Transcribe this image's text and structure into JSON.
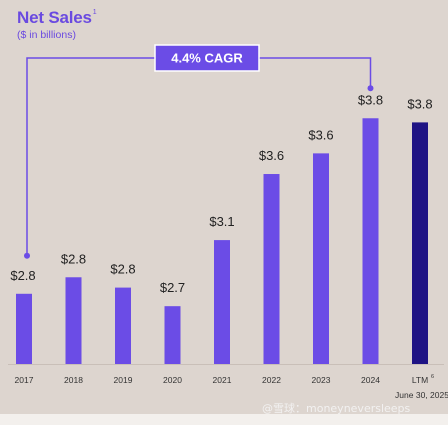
{
  "chart_data": {
    "type": "bar",
    "title": "Net Sales",
    "title_footnote": "1",
    "subtitle": "($ in billions)",
    "categories": [
      "2017",
      "2018",
      "2019",
      "2020",
      "2021",
      "2022",
      "2023",
      "2024",
      "LTM"
    ],
    "last_category_footnote": "6",
    "last_category_sublabel": "June 30, 2025",
    "values": [
      2.8,
      2.8,
      2.8,
      2.7,
      3.1,
      3.6,
      3.6,
      3.8,
      3.8
    ],
    "value_labels": [
      "$2.8",
      "$2.8",
      "$2.8",
      "$2.7",
      "$3.1",
      "$3.6",
      "$3.6",
      "$3.8",
      "$3.8"
    ],
    "bar_fill_values": [
      1.7,
      2.1,
      1.85,
      1.4,
      3.0,
      4.6,
      5.1,
      5.95,
      5.85
    ],
    "bar_color": "#6b4ce6",
    "highlight_color": "#1e1384",
    "highlight_index": 8,
    "annotation": {
      "text": "4.4% CAGR",
      "from_index": 0,
      "to_index": 7,
      "color": "#6b4ce6"
    }
  },
  "watermark": "@雪球：moneyneversleeps"
}
